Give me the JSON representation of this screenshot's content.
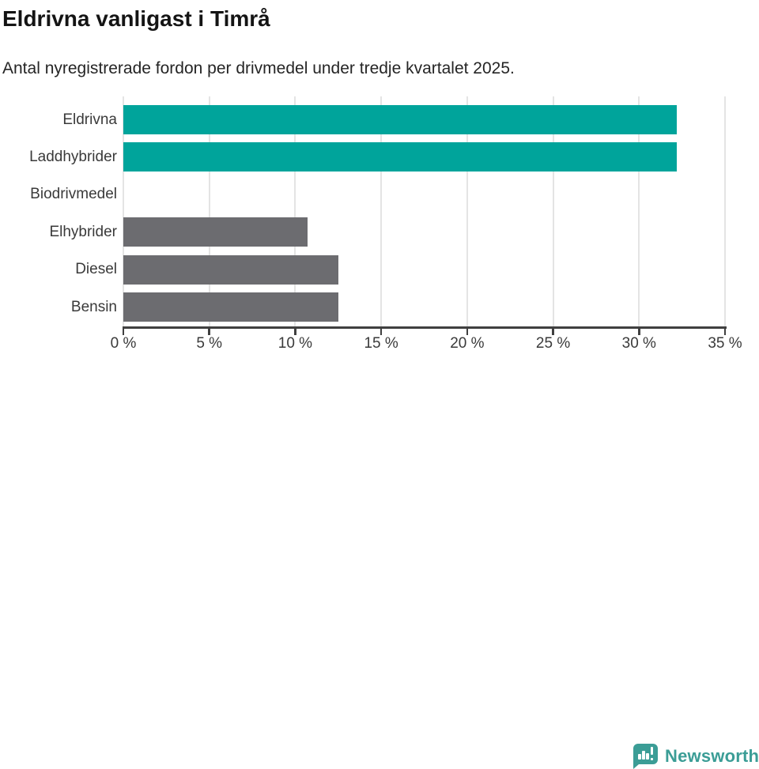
{
  "header": {
    "title": "Eldrivna vanligast i Timrå",
    "subtitle": "Antal nyregistrerade fordon per drivmedel under tredje kvartalet 2025."
  },
  "chart_data": {
    "type": "bar",
    "orientation": "horizontal",
    "title": "Eldrivna vanligast i Timrå",
    "subtitle": "Antal nyregistrerade fordon per drivmedel under tredje kvartalet 2025.",
    "categories": [
      "Eldrivna",
      "Laddhybrider",
      "Biodrivmedel",
      "Elhybrider",
      "Diesel",
      "Bensin"
    ],
    "values": [
      32.2,
      32.2,
      0,
      10.7,
      12.5,
      12.5
    ],
    "unit": "%",
    "bar_colors": [
      "#00a49b",
      "#00a49b",
      "#00a49b",
      "#6c6c70",
      "#6c6c70",
      "#6c6c70"
    ],
    "xlabel": "",
    "ylabel": "",
    "xlim": [
      0,
      35
    ],
    "x_ticks": [
      0,
      5,
      10,
      15,
      20,
      25,
      30,
      35
    ],
    "x_tick_labels": [
      "0 %",
      "5 %",
      "10 %",
      "15 %",
      "20 %",
      "25 %",
      "30 %",
      "35 %"
    ],
    "grid": true,
    "legend": false
  },
  "colors": {
    "teal": "#00a49b",
    "gray": "#6c6c70",
    "grid": "#e4e4e4",
    "axis": "#404040",
    "label_text": "#3a3a3a",
    "title_text": "#141414",
    "brand_teal": "#3b9d96"
  },
  "footer": {
    "brand": "Newsworthy",
    "logo_icon": "newsworthy-bar-chart-speech-bubble-icon"
  }
}
